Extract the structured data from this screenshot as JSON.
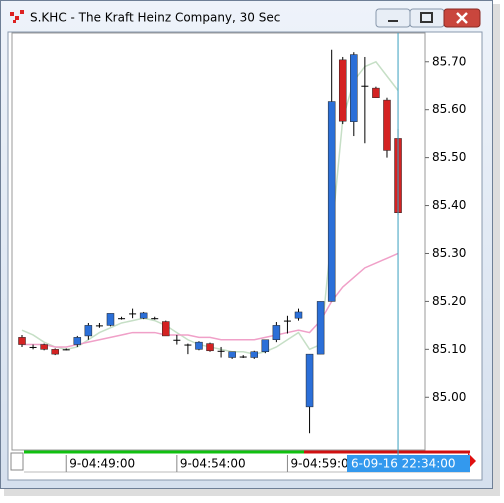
{
  "window_title": "S.KHC - The Kraft Heinz Company, 30 Sec",
  "chart_data": {
    "type": "candlestick",
    "categories": [
      null,
      null,
      null,
      null,
      "9-04:49:00",
      null,
      null,
      null,
      null,
      null,
      null,
      null,
      null,
      null,
      "9-04:54:00",
      null,
      null,
      null,
      null,
      null,
      null,
      null,
      null,
      null,
      "9-04:59:00",
      null,
      null,
      null,
      null,
      null,
      null,
      null,
      null,
      null,
      null
    ],
    "cursor_label": "6-09-16 22:34:00",
    "open": [
      85.125,
      85.105,
      85.11,
      85.1,
      85.1,
      85.11,
      85.128,
      85.15,
      85.15,
      85.165,
      85.175,
      85.165,
      85.165,
      85.158,
      85.12,
      85.11,
      85.1,
      85.112,
      85.097,
      85.083,
      85.085,
      85.083,
      85.095,
      85.12,
      85.16,
      85.165,
      84.98,
      85.09,
      85.2,
      85.704,
      85.575,
      85.65,
      85.645,
      85.62,
      85.54
    ],
    "high": [
      85.13,
      85.11,
      85.112,
      85.102,
      85.102,
      85.128,
      85.155,
      85.155,
      85.175,
      85.168,
      85.185,
      85.178,
      85.168,
      85.16,
      85.13,
      85.112,
      85.117,
      85.114,
      85.105,
      85.095,
      85.088,
      85.097,
      85.12,
      85.157,
      85.17,
      85.185,
      85.09,
      85.2,
      85.725,
      85.71,
      85.72,
      85.71,
      85.648,
      85.625,
      85.56
    ],
    "low": [
      85.105,
      85.1,
      85.098,
      85.088,
      85.098,
      85.105,
      85.12,
      85.145,
      85.148,
      85.162,
      85.165,
      85.163,
      85.162,
      85.128,
      85.11,
      85.09,
      85.098,
      85.095,
      85.083,
      85.08,
      85.082,
      85.08,
      85.092,
      85.115,
      85.133,
      85.16,
      84.925,
      85.09,
      85.2,
      85.57,
      85.545,
      85.53,
      85.625,
      85.5,
      85.38
    ],
    "close": [
      85.11,
      85.105,
      85.1,
      85.09,
      85.1,
      85.125,
      85.15,
      85.15,
      85.175,
      85.165,
      85.175,
      85.176,
      85.165,
      85.128,
      85.12,
      85.11,
      85.115,
      85.097,
      85.097,
      85.095,
      85.085,
      85.095,
      85.12,
      85.15,
      85.16,
      85.178,
      85.09,
      85.2,
      85.617,
      85.576,
      85.715,
      85.65,
      85.625,
      85.515,
      85.385
    ],
    "up_color": "#2b6fd8",
    "down_color": "#d42222",
    "doji_color": "#000000",
    "series": [
      {
        "color": "#c6dfc6",
        "values": [
          85.14,
          85.13,
          85.115,
          85.105,
          85.1,
          85.105,
          85.12,
          85.135,
          85.145,
          85.155,
          85.16,
          85.165,
          85.16,
          85.15,
          85.135,
          85.12,
          85.11,
          85.105,
          85.1,
          85.095,
          85.095,
          85.09,
          85.095,
          85.105,
          85.12,
          85.135,
          85.1,
          85.11,
          85.34,
          85.58,
          85.66,
          85.69,
          85.7,
          85.67,
          85.64
        ]
      },
      {
        "color": "#f0a0c8",
        "values": [
          85.11,
          85.11,
          85.11,
          85.105,
          85.105,
          85.11,
          85.115,
          85.12,
          85.125,
          85.13,
          85.135,
          85.135,
          85.135,
          85.13,
          85.13,
          85.13,
          85.125,
          85.125,
          85.12,
          85.12,
          85.12,
          85.12,
          85.125,
          85.13,
          85.135,
          85.14,
          85.135,
          85.16,
          85.2,
          85.23,
          85.25,
          85.27,
          85.28,
          85.29,
          85.3
        ]
      }
    ],
    "ylim": [
      84.89,
      85.76
    ],
    "yticks": [
      {
        "value": 85.0,
        "label": "85.00"
      },
      {
        "value": 85.1,
        "label": "85.10"
      },
      {
        "value": 85.2,
        "label": "85.20"
      },
      {
        "value": 85.3,
        "label": "85.30"
      },
      {
        "value": 85.4,
        "label": "85.40"
      },
      {
        "value": 85.5,
        "label": "85.50"
      },
      {
        "value": 85.6,
        "label": "85.60"
      },
      {
        "value": 85.7,
        "label": "85.70"
      }
    ]
  }
}
